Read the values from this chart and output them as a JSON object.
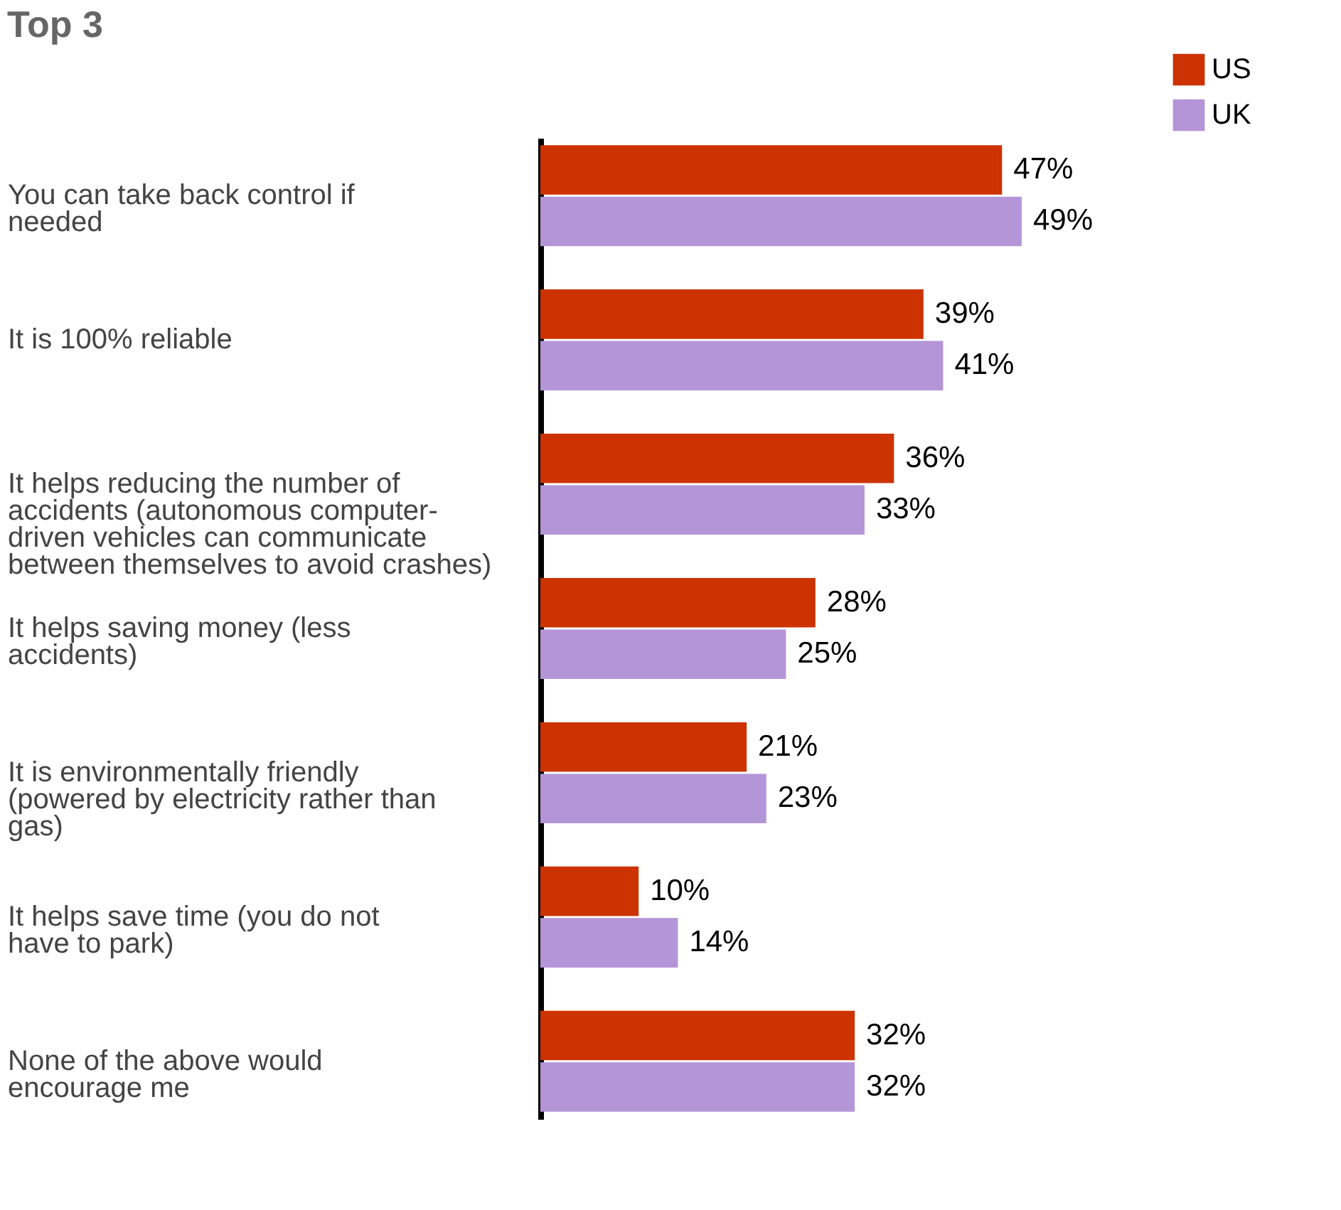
{
  "chart_data": {
    "type": "bar",
    "orientation": "horizontal",
    "title": "Top 3",
    "categories": [
      "You can take back control if needed",
      "It is 100% reliable",
      "It helps reducing the number of accidents (autonomous computer-driven vehicles can communicate between themselves to avoid crashes)",
      "It helps saving money (less accidents)",
      "It is environmentally friendly (powered by electricity rather than gas)",
      "It helps save time (you do not have to park)",
      "None of the above would encourage me"
    ],
    "series": [
      {
        "name": "US",
        "color": "#cc3300",
        "values": [
          47,
          39,
          36,
          28,
          21,
          10,
          32
        ],
        "value_labels": [
          "47%",
          "39%",
          "36%",
          "28%",
          "21%",
          "10%",
          "32%"
        ]
      },
      {
        "name": "UK",
        "color": "#b495d8",
        "values": [
          49,
          41,
          33,
          25,
          23,
          14,
          32
        ],
        "value_labels": [
          "49%",
          "41%",
          "33%",
          "25%",
          "23%",
          "14%",
          "32%"
        ]
      }
    ],
    "legend": "top right",
    "grid": false
  }
}
